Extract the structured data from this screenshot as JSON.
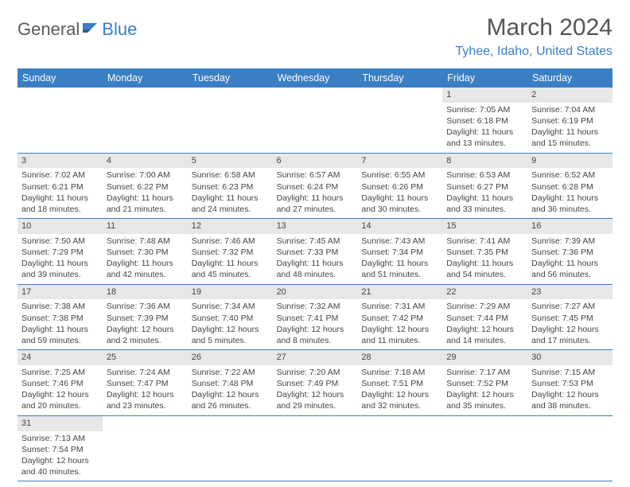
{
  "logo": {
    "general": "General",
    "blue": "Blue"
  },
  "title": "March 2024",
  "location": "Tyhee, Idaho, United States",
  "colors": {
    "brand_blue": "#3a7fc4",
    "header_bg": "#3a7fc4",
    "header_text": "#ffffff",
    "daynum_bg": "#e7e7e7",
    "row_border": "#3a7fc4",
    "body_text": "#444444",
    "title_text": "#555555",
    "background": "#ffffff"
  },
  "weekdays": [
    "Sunday",
    "Monday",
    "Tuesday",
    "Wednesday",
    "Thursday",
    "Friday",
    "Saturday"
  ],
  "cells": [
    {
      "blank": true
    },
    {
      "blank": true
    },
    {
      "blank": true
    },
    {
      "blank": true
    },
    {
      "blank": true
    },
    {
      "day": "1",
      "sunrise": "Sunrise: 7:05 AM",
      "sunset": "Sunset: 6:18 PM",
      "daylight": "Daylight: 11 hours and 13 minutes."
    },
    {
      "day": "2",
      "sunrise": "Sunrise: 7:04 AM",
      "sunset": "Sunset: 6:19 PM",
      "daylight": "Daylight: 11 hours and 15 minutes."
    },
    {
      "day": "3",
      "sunrise": "Sunrise: 7:02 AM",
      "sunset": "Sunset: 6:21 PM",
      "daylight": "Daylight: 11 hours and 18 minutes."
    },
    {
      "day": "4",
      "sunrise": "Sunrise: 7:00 AM",
      "sunset": "Sunset: 6:22 PM",
      "daylight": "Daylight: 11 hours and 21 minutes."
    },
    {
      "day": "5",
      "sunrise": "Sunrise: 6:58 AM",
      "sunset": "Sunset: 6:23 PM",
      "daylight": "Daylight: 11 hours and 24 minutes."
    },
    {
      "day": "6",
      "sunrise": "Sunrise: 6:57 AM",
      "sunset": "Sunset: 6:24 PM",
      "daylight": "Daylight: 11 hours and 27 minutes."
    },
    {
      "day": "7",
      "sunrise": "Sunrise: 6:55 AM",
      "sunset": "Sunset: 6:26 PM",
      "daylight": "Daylight: 11 hours and 30 minutes."
    },
    {
      "day": "8",
      "sunrise": "Sunrise: 6:53 AM",
      "sunset": "Sunset: 6:27 PM",
      "daylight": "Daylight: 11 hours and 33 minutes."
    },
    {
      "day": "9",
      "sunrise": "Sunrise: 6:52 AM",
      "sunset": "Sunset: 6:28 PM",
      "daylight": "Daylight: 11 hours and 36 minutes."
    },
    {
      "day": "10",
      "sunrise": "Sunrise: 7:50 AM",
      "sunset": "Sunset: 7:29 PM",
      "daylight": "Daylight: 11 hours and 39 minutes."
    },
    {
      "day": "11",
      "sunrise": "Sunrise: 7:48 AM",
      "sunset": "Sunset: 7:30 PM",
      "daylight": "Daylight: 11 hours and 42 minutes."
    },
    {
      "day": "12",
      "sunrise": "Sunrise: 7:46 AM",
      "sunset": "Sunset: 7:32 PM",
      "daylight": "Daylight: 11 hours and 45 minutes."
    },
    {
      "day": "13",
      "sunrise": "Sunrise: 7:45 AM",
      "sunset": "Sunset: 7:33 PM",
      "daylight": "Daylight: 11 hours and 48 minutes."
    },
    {
      "day": "14",
      "sunrise": "Sunrise: 7:43 AM",
      "sunset": "Sunset: 7:34 PM",
      "daylight": "Daylight: 11 hours and 51 minutes."
    },
    {
      "day": "15",
      "sunrise": "Sunrise: 7:41 AM",
      "sunset": "Sunset: 7:35 PM",
      "daylight": "Daylight: 11 hours and 54 minutes."
    },
    {
      "day": "16",
      "sunrise": "Sunrise: 7:39 AM",
      "sunset": "Sunset: 7:36 PM",
      "daylight": "Daylight: 11 hours and 56 minutes."
    },
    {
      "day": "17",
      "sunrise": "Sunrise: 7:38 AM",
      "sunset": "Sunset: 7:38 PM",
      "daylight": "Daylight: 11 hours and 59 minutes."
    },
    {
      "day": "18",
      "sunrise": "Sunrise: 7:36 AM",
      "sunset": "Sunset: 7:39 PM",
      "daylight": "Daylight: 12 hours and 2 minutes."
    },
    {
      "day": "19",
      "sunrise": "Sunrise: 7:34 AM",
      "sunset": "Sunset: 7:40 PM",
      "daylight": "Daylight: 12 hours and 5 minutes."
    },
    {
      "day": "20",
      "sunrise": "Sunrise: 7:32 AM",
      "sunset": "Sunset: 7:41 PM",
      "daylight": "Daylight: 12 hours and 8 minutes."
    },
    {
      "day": "21",
      "sunrise": "Sunrise: 7:31 AM",
      "sunset": "Sunset: 7:42 PM",
      "daylight": "Daylight: 12 hours and 11 minutes."
    },
    {
      "day": "22",
      "sunrise": "Sunrise: 7:29 AM",
      "sunset": "Sunset: 7:44 PM",
      "daylight": "Daylight: 12 hours and 14 minutes."
    },
    {
      "day": "23",
      "sunrise": "Sunrise: 7:27 AM",
      "sunset": "Sunset: 7:45 PM",
      "daylight": "Daylight: 12 hours and 17 minutes."
    },
    {
      "day": "24",
      "sunrise": "Sunrise: 7:25 AM",
      "sunset": "Sunset: 7:46 PM",
      "daylight": "Daylight: 12 hours and 20 minutes."
    },
    {
      "day": "25",
      "sunrise": "Sunrise: 7:24 AM",
      "sunset": "Sunset: 7:47 PM",
      "daylight": "Daylight: 12 hours and 23 minutes."
    },
    {
      "day": "26",
      "sunrise": "Sunrise: 7:22 AM",
      "sunset": "Sunset: 7:48 PM",
      "daylight": "Daylight: 12 hours and 26 minutes."
    },
    {
      "day": "27",
      "sunrise": "Sunrise: 7:20 AM",
      "sunset": "Sunset: 7:49 PM",
      "daylight": "Daylight: 12 hours and 29 minutes."
    },
    {
      "day": "28",
      "sunrise": "Sunrise: 7:18 AM",
      "sunset": "Sunset: 7:51 PM",
      "daylight": "Daylight: 12 hours and 32 minutes."
    },
    {
      "day": "29",
      "sunrise": "Sunrise: 7:17 AM",
      "sunset": "Sunset: 7:52 PM",
      "daylight": "Daylight: 12 hours and 35 minutes."
    },
    {
      "day": "30",
      "sunrise": "Sunrise: 7:15 AM",
      "sunset": "Sunset: 7:53 PM",
      "daylight": "Daylight: 12 hours and 38 minutes."
    },
    {
      "day": "31",
      "sunrise": "Sunrise: 7:13 AM",
      "sunset": "Sunset: 7:54 PM",
      "daylight": "Daylight: 12 hours and 40 minutes."
    },
    {
      "blank": true
    },
    {
      "blank": true
    },
    {
      "blank": true
    },
    {
      "blank": true
    },
    {
      "blank": true
    },
    {
      "blank": true
    }
  ]
}
